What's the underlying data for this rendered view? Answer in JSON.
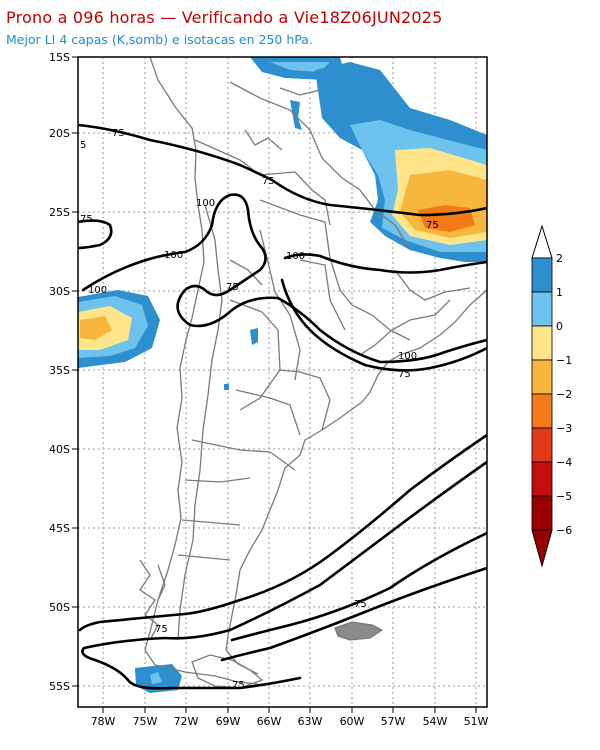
{
  "header": {
    "title": "Prono a 096 horas — Verificando a Vie18Z06JUN2025",
    "subtitle": "Mejor LI 4 capas (K,somb) e isotacas en 250 hPa."
  },
  "map": {
    "lat_labels": [
      "15S",
      "20S",
      "25S",
      "30S",
      "35S",
      "40S",
      "45S",
      "50S",
      "55S"
    ],
    "lon_labels": [
      "78W",
      "75W",
      "72W",
      "69W",
      "66W",
      "63W",
      "60W",
      "57W",
      "54W",
      "51W"
    ],
    "contour_labels": [
      "75",
      "5",
      "75",
      "100",
      "75",
      "100",
      "100",
      "75",
      "100",
      "75",
      "100",
      "75",
      "75"
    ]
  },
  "colorbar": {
    "labels": [
      "2",
      "1",
      "0",
      "−1",
      "−2",
      "−3",
      "−4",
      "−5",
      "−6"
    ],
    "colors": [
      "#2e8fcf",
      "#6ec2ee",
      "#ffffff",
      "#ffe58a",
      "#f6b73c",
      "#f07b18",
      "#e23a16",
      "#c40e0e",
      "#9a0000"
    ]
  }
}
